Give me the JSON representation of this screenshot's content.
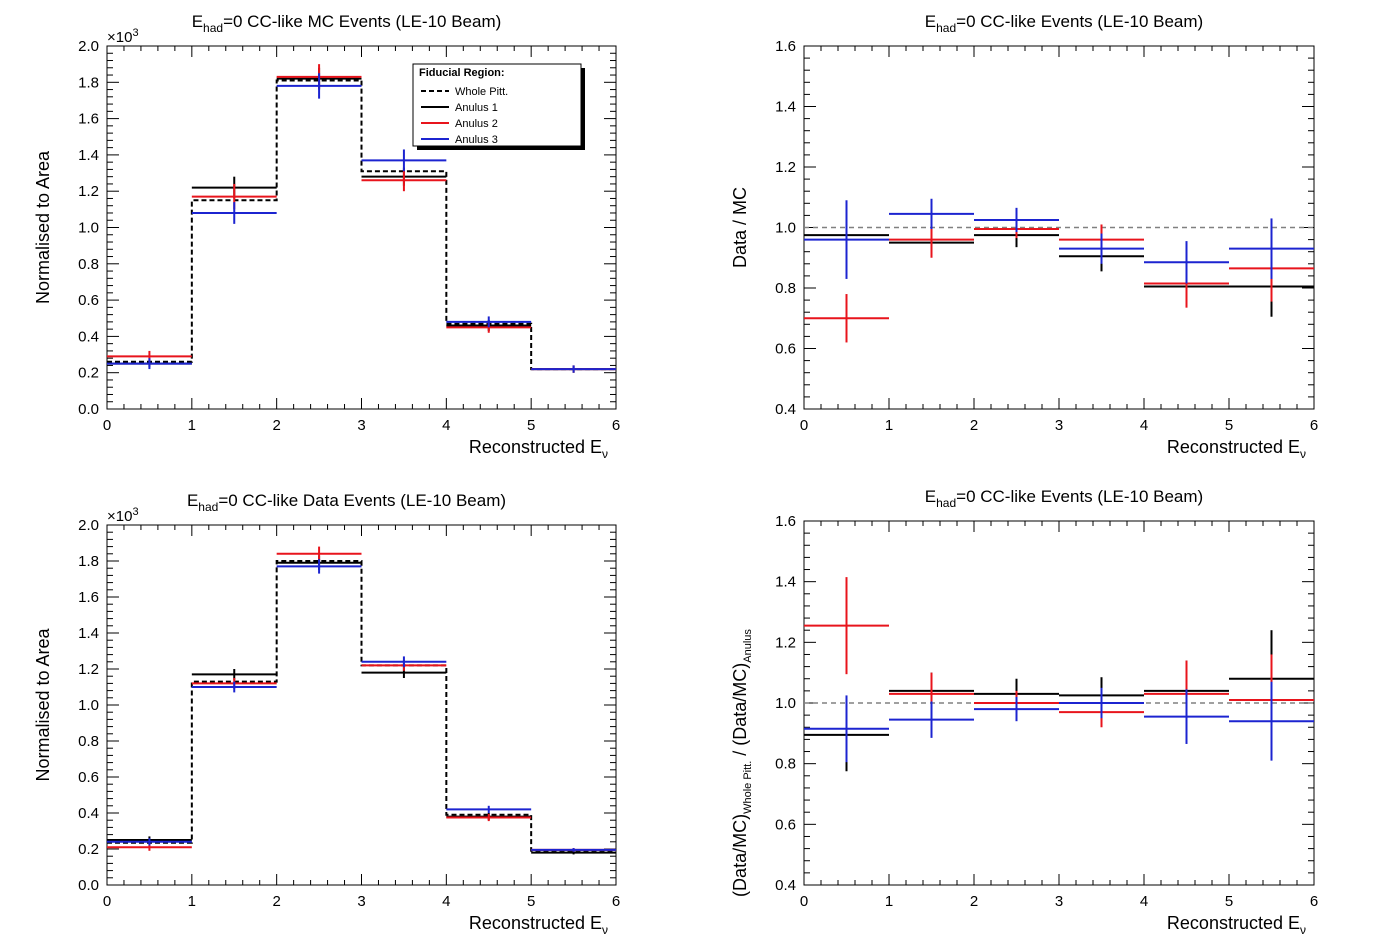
{
  "colors": {
    "whole": "#000000",
    "an1": "#000000",
    "an2": "#e8141c",
    "an3": "#1c24d0",
    "ref": "#808080"
  },
  "chart_data": [
    {
      "type": "line",
      "title_main": "E",
      "title_sub": "had",
      "title_rest": "=0 CC-like MC Events (LE-10 Beam)",
      "ylabel": "Normalised to Area",
      "xlabel_main": "Reconstructed E",
      "xlabel_sub": "ν",
      "multiplier": "×10",
      "multiplier_exp": "3",
      "xlim": [
        0,
        6
      ],
      "ylim": [
        0,
        2.0
      ],
      "xticks": [
        "0",
        "1",
        "2",
        "3",
        "4",
        "5",
        "6"
      ],
      "yticks": [
        "0.0",
        "0.2",
        "0.4",
        "0.6",
        "0.8",
        "1.0",
        "1.2",
        "1.4",
        "1.6",
        "1.8",
        "2.0"
      ],
      "yticks_values": [
        0,
        0.2,
        0.4,
        0.6,
        0.8,
        1.0,
        1.2,
        1.4,
        1.6,
        1.8,
        2.0
      ],
      "bin_edges": [
        0,
        1,
        2,
        3,
        4,
        5,
        6
      ],
      "legend": {
        "header": "Fiducial Region:",
        "entries": [
          "Whole Pitt.",
          "Anulus 1",
          "Anulus 2",
          "Anulus 3"
        ]
      },
      "series": [
        {
          "name": "Whole Pitt.",
          "key": "whole",
          "style": "hist",
          "values": [
            0.26,
            1.15,
            1.81,
            1.31,
            0.47,
            0.22
          ]
        },
        {
          "name": "Anulus 1",
          "key": "an1",
          "style": "err",
          "values": [
            0.25,
            1.22,
            1.82,
            1.28,
            0.46,
            0.22
          ],
          "errors": [
            0.02,
            0.06,
            0.06,
            0.05,
            0.03,
            0.02
          ]
        },
        {
          "name": "Anulus 2",
          "key": "an2",
          "style": "err",
          "values": [
            0.29,
            1.17,
            1.83,
            1.26,
            0.45,
            0.22
          ],
          "errors": [
            0.03,
            0.07,
            0.07,
            0.06,
            0.03,
            0.02
          ]
        },
        {
          "name": "Anulus 3",
          "key": "an3",
          "style": "err",
          "values": [
            0.25,
            1.08,
            1.78,
            1.37,
            0.48,
            0.22
          ],
          "errors": [
            0.03,
            0.06,
            0.07,
            0.06,
            0.03,
            0.02
          ]
        }
      ]
    },
    {
      "type": "line",
      "title_main": "E",
      "title_sub": "had",
      "title_rest": "=0 CC-like Events (LE-10 Beam)",
      "ylabel": "Data / MC",
      "xlabel_main": "Reconstructed E",
      "xlabel_sub": "ν",
      "xlim": [
        0,
        6
      ],
      "ylim": [
        0.4,
        1.6
      ],
      "xticks": [
        "0",
        "1",
        "2",
        "3",
        "4",
        "5",
        "6"
      ],
      "yticks": [
        "0.4",
        "0.6",
        "0.8",
        "1.0",
        "1.2",
        "1.4",
        "1.6"
      ],
      "yticks_values": [
        0.4,
        0.6,
        0.8,
        1.0,
        1.2,
        1.4,
        1.6
      ],
      "bin_edges": [
        0,
        1,
        2,
        3,
        4,
        5,
        6
      ],
      "reference_line": 1.0,
      "series": [
        {
          "name": "Anulus 1",
          "key": "an1",
          "style": "err",
          "values": [
            0.975,
            0.95,
            0.975,
            0.905,
            0.805,
            0.805
          ],
          "errors": [
            0.02,
            0.02,
            0.04,
            0.05,
            0.06,
            0.1
          ]
        },
        {
          "name": "Anulus 2",
          "key": "an2",
          "style": "err",
          "values": [
            0.7,
            0.96,
            0.995,
            0.96,
            0.815,
            0.865
          ],
          "errors": [
            0.08,
            0.06,
            0.03,
            0.05,
            0.08,
            0.11
          ]
        },
        {
          "name": "Anulus 3",
          "key": "an3",
          "style": "err",
          "values": [
            0.96,
            1.045,
            1.025,
            0.93,
            0.885,
            0.93
          ],
          "errors": [
            0.13,
            0.05,
            0.04,
            0.05,
            0.07,
            0.1
          ]
        }
      ]
    },
    {
      "type": "line",
      "title_main": "E",
      "title_sub": "had",
      "title_rest": "=0 CC-like Data Events (LE-10 Beam)",
      "ylabel": "Normalised to Area",
      "xlabel_main": "Reconstructed E",
      "xlabel_sub": "ν",
      "multiplier": "×10",
      "multiplier_exp": "3",
      "xlim": [
        0,
        6
      ],
      "ylim": [
        0,
        2.0
      ],
      "xticks": [
        "0",
        "1",
        "2",
        "3",
        "4",
        "5",
        "6"
      ],
      "yticks": [
        "0.0",
        "0.2",
        "0.4",
        "0.6",
        "0.8",
        "1.0",
        "1.2",
        "1.4",
        "1.6",
        "1.8",
        "2.0"
      ],
      "yticks_values": [
        0,
        0.2,
        0.4,
        0.6,
        0.8,
        1.0,
        1.2,
        1.4,
        1.6,
        1.8,
        2.0
      ],
      "bin_edges": [
        0,
        1,
        2,
        3,
        4,
        5,
        6
      ],
      "series": [
        {
          "name": "Whole Pitt.",
          "key": "whole",
          "style": "hist",
          "values": [
            0.235,
            1.13,
            1.8,
            1.22,
            0.39,
            0.19
          ]
        },
        {
          "name": "Anulus 1",
          "key": "an1",
          "style": "err",
          "values": [
            0.25,
            1.17,
            1.79,
            1.18,
            0.38,
            0.18
          ],
          "errors": [
            0.02,
            0.03,
            0.04,
            0.03,
            0.02,
            0.01
          ]
        },
        {
          "name": "Anulus 2",
          "key": "an2",
          "style": "err",
          "values": [
            0.21,
            1.12,
            1.84,
            1.22,
            0.375,
            0.195
          ],
          "errors": [
            0.02,
            0.03,
            0.04,
            0.03,
            0.02,
            0.01
          ]
        },
        {
          "name": "Anulus 3",
          "key": "an3",
          "style": "err",
          "values": [
            0.24,
            1.1,
            1.77,
            1.24,
            0.42,
            0.195
          ],
          "errors": [
            0.02,
            0.03,
            0.04,
            0.03,
            0.02,
            0.01
          ]
        }
      ]
    },
    {
      "type": "line",
      "title_main": "E",
      "title_sub": "had",
      "title_rest": "=0 CC-like Events (LE-10 Beam)",
      "ylabel_parts": [
        "(Data/MC)",
        "Whole Pitt.",
        " / (Data/MC)",
        "Anulus"
      ],
      "xlabel_main": "Reconstructed E",
      "xlabel_sub": "ν",
      "xlim": [
        0,
        6
      ],
      "ylim": [
        0.4,
        1.6
      ],
      "xticks": [
        "0",
        "1",
        "2",
        "3",
        "4",
        "5",
        "6"
      ],
      "yticks": [
        "0.4",
        "0.6",
        "0.8",
        "1.0",
        "1.2",
        "1.4",
        "1.6"
      ],
      "yticks_values": [
        0.4,
        0.6,
        0.8,
        1.0,
        1.2,
        1.4,
        1.6
      ],
      "bin_edges": [
        0,
        1,
        2,
        3,
        4,
        5,
        6
      ],
      "reference_line": 1.0,
      "series": [
        {
          "name": "Anulus 1",
          "key": "an1",
          "style": "err",
          "values": [
            0.895,
            1.04,
            1.03,
            1.025,
            1.04,
            1.08
          ],
          "errors": [
            0.12,
            0.06,
            0.05,
            0.06,
            0.1,
            0.16
          ]
        },
        {
          "name": "Anulus 2",
          "key": "an2",
          "style": "err",
          "values": [
            1.255,
            1.03,
            1.0,
            0.97,
            1.03,
            1.01
          ],
          "errors": [
            0.16,
            0.07,
            0.04,
            0.05,
            0.11,
            0.15
          ]
        },
        {
          "name": "Anulus 3",
          "key": "an3",
          "style": "err",
          "values": [
            0.915,
            0.945,
            0.98,
            1.0,
            0.955,
            0.94
          ],
          "errors": [
            0.11,
            0.06,
            0.04,
            0.05,
            0.09,
            0.13
          ]
        }
      ]
    }
  ]
}
